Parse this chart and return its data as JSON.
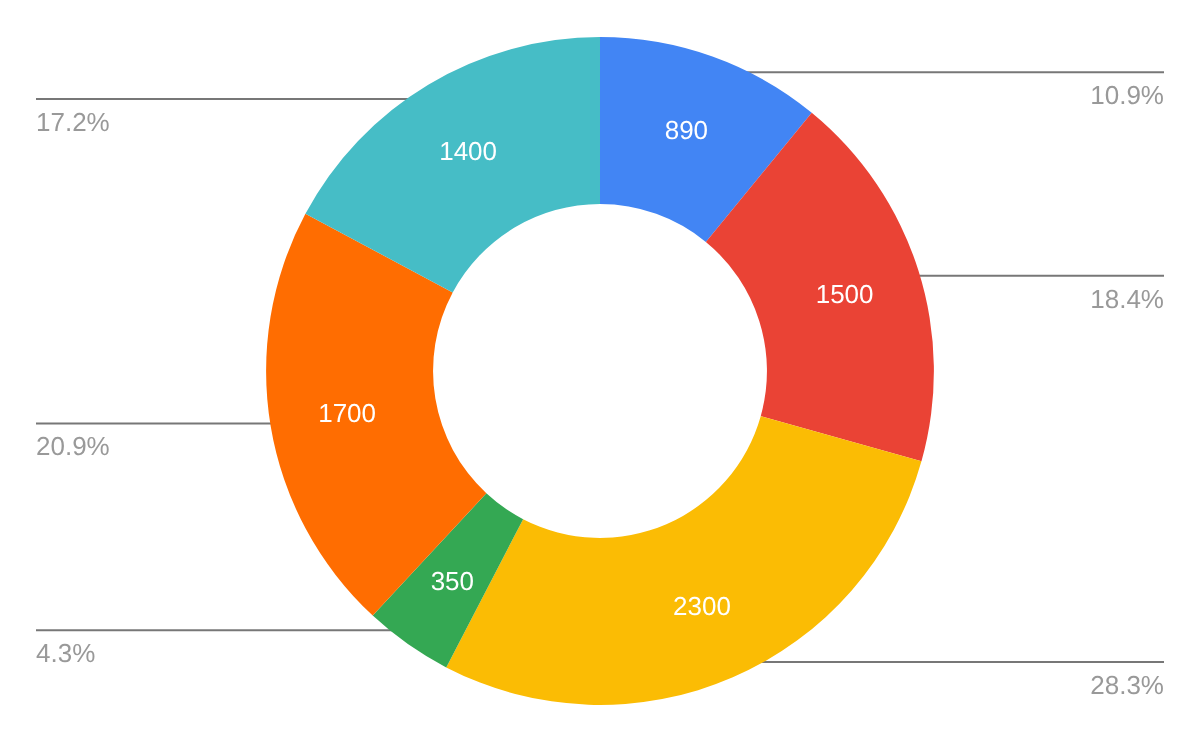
{
  "chart_data": {
    "type": "donut",
    "categories": [
      null,
      null,
      null,
      null,
      null,
      null
    ],
    "values": [
      890,
      1500,
      2300,
      350,
      1700,
      1400
    ],
    "colors": [
      "#4285f4",
      "#ea4335",
      "#fbbc04",
      "#34a853",
      "#ff6d01",
      "#46bdc6"
    ],
    "data_labels": true,
    "annotations": [
      "10.9%",
      "18.4%",
      "28.3%",
      "4.3%",
      "20.9%",
      "17.2%"
    ]
  }
}
